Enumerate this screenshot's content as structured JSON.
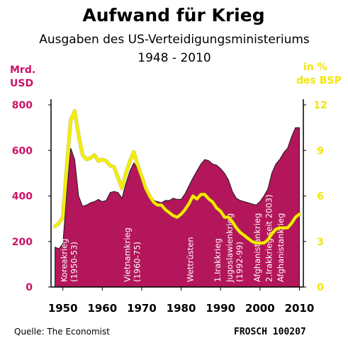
{
  "colors": {
    "area": "#b3165a",
    "area_stroke": "#1a1a1a",
    "line": "#f5ee00",
    "left_axis": "#cc1166",
    "right_axis": "#f2e600"
  },
  "chart_data": {
    "type": "area",
    "title": "Aufwand für Krieg",
    "subtitle": "Ausgaben des US-Verteidigungsministeriums",
    "subtitle2": "1948 - 2010",
    "ylabel_left": [
      "Mrd.",
      "USD"
    ],
    "ylabel_right": [
      "in %",
      "des BSP"
    ],
    "xlim": [
      1947,
      2011
    ],
    "ylim_left": [
      0,
      800
    ],
    "ylim_right": [
      0,
      12
    ],
    "x_ticks": [
      1950,
      1960,
      1970,
      1980,
      1990,
      2000,
      2010
    ],
    "y_ticks_left": [
      "800",
      "600",
      "400",
      "200",
      "0"
    ],
    "y_ticks_right": [
      "12",
      "9",
      "6",
      "3",
      "0"
    ],
    "series": [
      {
        "name": "Mrd. USD",
        "axis": "left",
        "type": "area",
        "x": [
          1948,
          1949,
          1950,
          1951,
          1952,
          1953,
          1954,
          1955,
          1956,
          1957,
          1958,
          1959,
          1960,
          1961,
          1962,
          1963,
          1964,
          1965,
          1966,
          1967,
          1968,
          1969,
          1970,
          1971,
          1972,
          1973,
          1974,
          1975,
          1976,
          1977,
          1978,
          1979,
          1980,
          1981,
          1982,
          1983,
          1984,
          1985,
          1986,
          1987,
          1988,
          1989,
          1990,
          1991,
          1992,
          1993,
          1994,
          1995,
          1996,
          1997,
          1998,
          1999,
          2000,
          2001,
          2002,
          2003,
          2004,
          2005,
          2006,
          2007,
          2008,
          2009,
          2010
        ],
        "values": [
          175,
          168,
          190,
          420,
          610,
          560,
          400,
          355,
          360,
          370,
          375,
          385,
          375,
          380,
          415,
          420,
          415,
          390,
          455,
          510,
          545,
          520,
          470,
          420,
          400,
          380,
          375,
          370,
          380,
          380,
          390,
          385,
          385,
          410,
          445,
          480,
          510,
          540,
          560,
          555,
          540,
          535,
          520,
          500,
          470,
          420,
          390,
          380,
          375,
          370,
          365,
          360,
          375,
          400,
          430,
          500,
          540,
          560,
          590,
          610,
          660,
          700,
          700
        ]
      },
      {
        "name": "in % des BSP",
        "axis": "right",
        "type": "line",
        "x": [
          1948,
          1949,
          1950,
          1951,
          1952,
          1953,
          1954,
          1955,
          1956,
          1957,
          1958,
          1959,
          1960,
          1961,
          1962,
          1963,
          1964,
          1965,
          1966,
          1967,
          1968,
          1969,
          1970,
          1971,
          1972,
          1973,
          1974,
          1975,
          1976,
          1977,
          1978,
          1979,
          1980,
          1981,
          1982,
          1983,
          1984,
          1985,
          1986,
          1987,
          1988,
          1989,
          1990,
          1991,
          1992,
          1993,
          1994,
          1995,
          1996,
          1997,
          1998,
          1999,
          2000,
          2001,
          2002,
          2003,
          2004,
          2005,
          2006,
          2007,
          2008,
          2009,
          2010
        ],
        "values": [
          4.0,
          4.2,
          4.6,
          8.0,
          11.0,
          11.6,
          10.0,
          8.7,
          8.4,
          8.5,
          8.7,
          8.3,
          8.4,
          8.3,
          8.0,
          7.9,
          7.2,
          6.5,
          7.5,
          8.3,
          8.9,
          8.0,
          7.3,
          6.5,
          6.0,
          5.6,
          5.4,
          5.4,
          5.1,
          4.9,
          4.7,
          4.6,
          4.8,
          5.1,
          5.5,
          6.0,
          5.8,
          6.1,
          6.1,
          5.8,
          5.6,
          5.2,
          5.0,
          4.6,
          4.6,
          4.3,
          3.9,
          3.6,
          3.4,
          3.2,
          3.0,
          2.9,
          2.9,
          2.9,
          3.1,
          3.5,
          3.8,
          3.9,
          3.9,
          3.9,
          4.2,
          4.6,
          4.8
        ]
      }
    ],
    "annotations": [
      {
        "lines": [
          "Koreakrieg",
          "(1950-53)"
        ],
        "x": 1951
      },
      {
        "lines": [
          "Vietnamkrieg",
          "(1960-75)"
        ],
        "x": 1967
      },
      {
        "lines": [
          "Wettrüsten"
        ],
        "x": 1983
      },
      {
        "lines": [
          "1.Irakkrieg"
        ],
        "x": 1990
      },
      {
        "lines": [
          "Jugoslawienkrieg",
          "(1992-99)"
        ],
        "x": 1993
      },
      {
        "lines": [
          "Afghanistankrieg"
        ],
        "x": 2000
      },
      {
        "lines": [
          "2.Irakkrieg seit 2003)"
        ],
        "x": 2003
      },
      {
        "lines": [
          "Afghanistankrieg"
        ],
        "x": 2006
      }
    ]
  },
  "footer": {
    "source": "Quelle: The Economist",
    "signature": "FROSCH 100207"
  }
}
